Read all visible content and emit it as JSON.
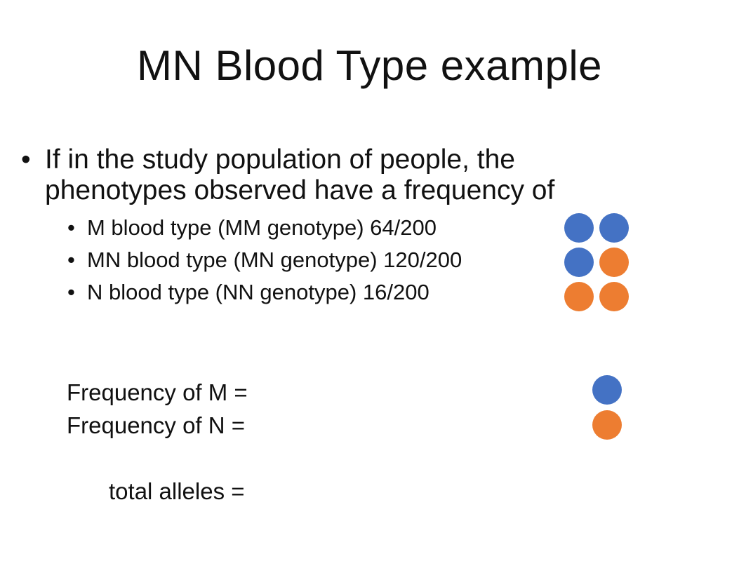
{
  "slide": {
    "title": "MN Blood Type example",
    "bullet": {
      "marker": "•",
      "line1": "If in the study population of people, the",
      "line2": "phenotypes observed have a frequency of"
    },
    "sub_items": [
      {
        "marker": "•",
        "text": "M blood type (MM genotype) 64/200"
      },
      {
        "marker": "•",
        "text": "MN blood type (MN genotype) 120/200"
      },
      {
        "marker": "•",
        "text": "N blood type (NN genotype) 16/200"
      }
    ],
    "frequency_m": "Frequency of M =",
    "frequency_n": "Frequency of N =",
    "total_alleles": "total alleles ="
  },
  "colors": {
    "allele_m": "#4472C4",
    "allele_n": "#ED7D31",
    "text": "#111111",
    "background": "#FFFFFF"
  },
  "icons": {
    "allele_m": "blue-circle-icon",
    "allele_n": "orange-circle-icon"
  }
}
